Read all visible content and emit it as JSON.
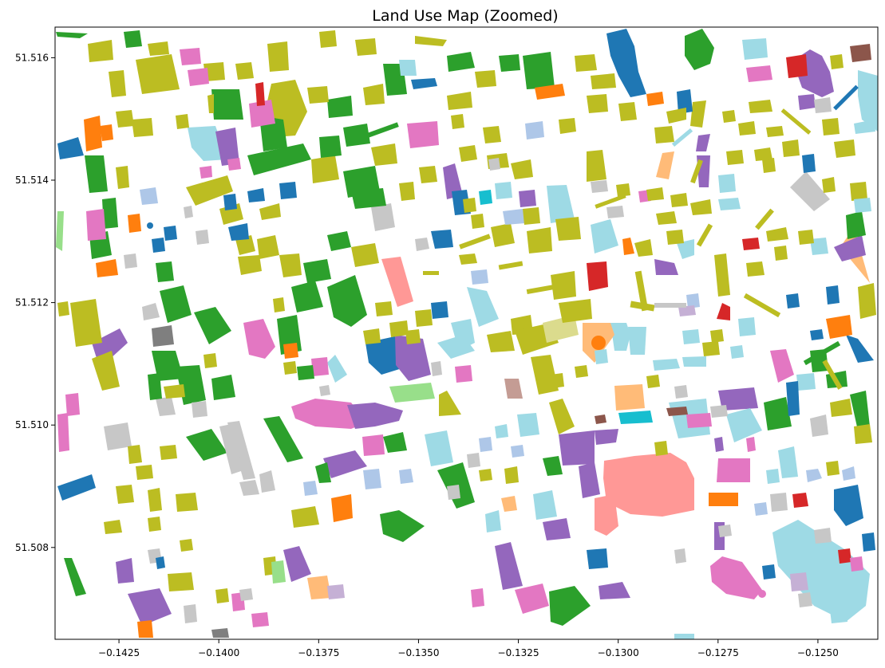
{
  "title": "Land Use Map (Zoomed)",
  "axes": {
    "x_range": [
      -0.1441,
      -0.1235
    ],
    "y_range": [
      51.5065,
      51.5165
    ],
    "x_ticks": [
      -0.1425,
      -0.14,
      -0.1375,
      -0.135,
      -0.1325,
      -0.13,
      -0.1275,
      -0.125
    ],
    "x_tick_labels": [
      "−0.1425",
      "−0.1400",
      "−0.1375",
      "−0.1350",
      "−0.1325",
      "−0.1300",
      "−0.1275",
      "−0.1250"
    ],
    "y_ticks": [
      51.508,
      51.51,
      51.512,
      51.514,
      51.516
    ],
    "y_tick_labels": [
      "51.508",
      "51.510",
      "51.512",
      "51.514",
      "51.516"
    ],
    "grid": false,
    "legend": "none"
  },
  "palette": {
    "green": "#2ca02c",
    "olive": "#bcbd22",
    "blue": "#1f77b4",
    "purple": "#9467bd",
    "pink": "#e377c2",
    "lightblue": "#9edae5",
    "lightgray": "#c7c7c7",
    "orange": "#ff7f0e",
    "red": "#d62728",
    "salmon": "#ff9896",
    "peach": "#ffbb78",
    "lightgreen": "#98df8a",
    "lavender": "#aec7e8",
    "cyan": "#17becf",
    "brown": "#8c564b",
    "gray": "#7f7f7f",
    "lilac": "#c5b0d5",
    "pale-olive": "#dbdb8d",
    "rose": "#c49c94",
    "light-pink": "#f7b6d2"
  }
}
